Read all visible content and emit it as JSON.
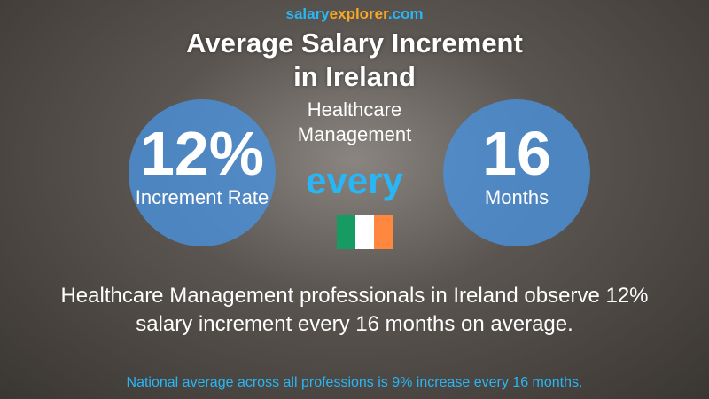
{
  "logo": {
    "part1": "salary",
    "part2": "explorer",
    "part3": ".com"
  },
  "title": {
    "line1": "Average Salary Increment",
    "line2": "in Ireland"
  },
  "subtitle": {
    "line1": "Healthcare",
    "line2": "Management"
  },
  "left": {
    "value": "12%",
    "label": "Increment Rate"
  },
  "every": "every",
  "right": {
    "value": "16",
    "label": "Months"
  },
  "description": {
    "line1": "Healthcare Management professionals in Ireland observe 12%",
    "line2": "salary increment every 16 months on average."
  },
  "national": "National average across all professions is 9% increase every 16 months.",
  "colors": {
    "circle": "#4a90d9",
    "accent": "#29b6f6",
    "flag": [
      "#169b62",
      "#ffffff",
      "#ff883e"
    ]
  }
}
